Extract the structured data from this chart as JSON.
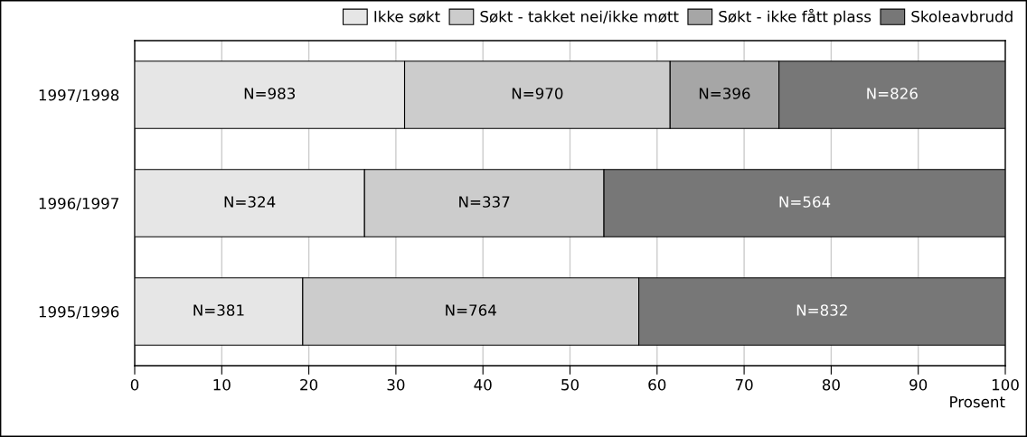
{
  "chart_data": {
    "type": "bar",
    "orientation": "horizontal",
    "stacked": true,
    "categories": [
      "1997/1998",
      "1996/1997",
      "1995/1996"
    ],
    "series": [
      {
        "name": "Ikke søkt",
        "color": "#e6e6e6",
        "values": [
          31,
          26.4,
          19.3
        ]
      },
      {
        "name": "Søkt - takket nei/ikke møtt",
        "color": "#cccccc",
        "values": [
          30.5,
          27.5,
          38.6
        ]
      },
      {
        "name": "Søkt - ikke fått plass",
        "color": "#a6a6a6",
        "values": [
          12.5,
          null,
          null
        ]
      },
      {
        "name": "Skoleavbrudd",
        "color": "#777777",
        "values": [
          26,
          46.1,
          42.1
        ]
      }
    ],
    "annotations": [
      "N=983",
      "N=970",
      "N=396",
      "N=826",
      "N=324",
      "N=337",
      "N=564",
      "N=381",
      "N=764",
      "N=832"
    ],
    "xlim": [
      0,
      100
    ],
    "xticks": [
      0,
      10,
      20,
      30,
      40,
      50,
      60,
      70,
      80,
      90,
      100
    ],
    "xlabel": "Prosent",
    "grid": "x",
    "legend": "top right"
  }
}
